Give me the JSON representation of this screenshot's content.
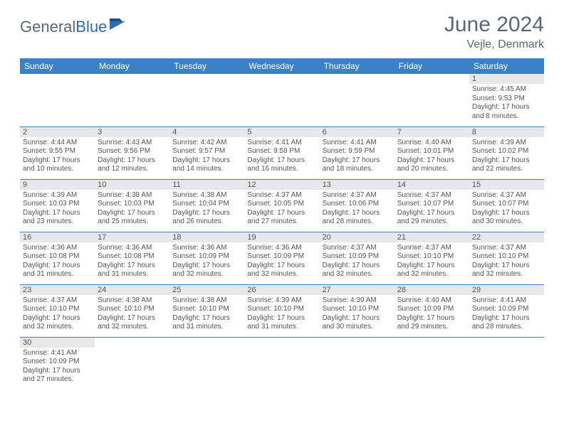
{
  "logo": {
    "text1": "General",
    "text2": "Blue"
  },
  "title": "June 2024",
  "location": "Vejle, Denmark",
  "colors": {
    "header_bg": "#3b82c4",
    "header_text": "#ffffff",
    "daynum_bg": "#e8e8e8",
    "border": "#3b82c4",
    "text": "#555555",
    "title_text": "#5c6670"
  },
  "weekdays": [
    "Sunday",
    "Monday",
    "Tuesday",
    "Wednesday",
    "Thursday",
    "Friday",
    "Saturday"
  ],
  "weeks": [
    [
      {
        "n": "",
        "sr": "",
        "ss": "",
        "dl": ""
      },
      {
        "n": "",
        "sr": "",
        "ss": "",
        "dl": ""
      },
      {
        "n": "",
        "sr": "",
        "ss": "",
        "dl": ""
      },
      {
        "n": "",
        "sr": "",
        "ss": "",
        "dl": ""
      },
      {
        "n": "",
        "sr": "",
        "ss": "",
        "dl": ""
      },
      {
        "n": "",
        "sr": "",
        "ss": "",
        "dl": ""
      },
      {
        "n": "1",
        "sr": "Sunrise: 4:45 AM",
        "ss": "Sunset: 9:53 PM",
        "dl": "Daylight: 17 hours and 8 minutes."
      }
    ],
    [
      {
        "n": "2",
        "sr": "Sunrise: 4:44 AM",
        "ss": "Sunset: 9:55 PM",
        "dl": "Daylight: 17 hours and 10 minutes."
      },
      {
        "n": "3",
        "sr": "Sunrise: 4:43 AM",
        "ss": "Sunset: 9:56 PM",
        "dl": "Daylight: 17 hours and 12 minutes."
      },
      {
        "n": "4",
        "sr": "Sunrise: 4:42 AM",
        "ss": "Sunset: 9:57 PM",
        "dl": "Daylight: 17 hours and 14 minutes."
      },
      {
        "n": "5",
        "sr": "Sunrise: 4:41 AM",
        "ss": "Sunset: 9:58 PM",
        "dl": "Daylight: 17 hours and 16 minutes."
      },
      {
        "n": "6",
        "sr": "Sunrise: 4:41 AM",
        "ss": "Sunset: 9:59 PM",
        "dl": "Daylight: 17 hours and 18 minutes."
      },
      {
        "n": "7",
        "sr": "Sunrise: 4:40 AM",
        "ss": "Sunset: 10:01 PM",
        "dl": "Daylight: 17 hours and 20 minutes."
      },
      {
        "n": "8",
        "sr": "Sunrise: 4:39 AM",
        "ss": "Sunset: 10:02 PM",
        "dl": "Daylight: 17 hours and 22 minutes."
      }
    ],
    [
      {
        "n": "9",
        "sr": "Sunrise: 4:39 AM",
        "ss": "Sunset: 10:03 PM",
        "dl": "Daylight: 17 hours and 23 minutes."
      },
      {
        "n": "10",
        "sr": "Sunrise: 4:38 AM",
        "ss": "Sunset: 10:03 PM",
        "dl": "Daylight: 17 hours and 25 minutes."
      },
      {
        "n": "11",
        "sr": "Sunrise: 4:38 AM",
        "ss": "Sunset: 10:04 PM",
        "dl": "Daylight: 17 hours and 26 minutes."
      },
      {
        "n": "12",
        "sr": "Sunrise: 4:37 AM",
        "ss": "Sunset: 10:05 PM",
        "dl": "Daylight: 17 hours and 27 minutes."
      },
      {
        "n": "13",
        "sr": "Sunrise: 4:37 AM",
        "ss": "Sunset: 10:06 PM",
        "dl": "Daylight: 17 hours and 28 minutes."
      },
      {
        "n": "14",
        "sr": "Sunrise: 4:37 AM",
        "ss": "Sunset: 10:07 PM",
        "dl": "Daylight: 17 hours and 29 minutes."
      },
      {
        "n": "15",
        "sr": "Sunrise: 4:37 AM",
        "ss": "Sunset: 10:07 PM",
        "dl": "Daylight: 17 hours and 30 minutes."
      }
    ],
    [
      {
        "n": "16",
        "sr": "Sunrise: 4:36 AM",
        "ss": "Sunset: 10:08 PM",
        "dl": "Daylight: 17 hours and 31 minutes."
      },
      {
        "n": "17",
        "sr": "Sunrise: 4:36 AM",
        "ss": "Sunset: 10:08 PM",
        "dl": "Daylight: 17 hours and 31 minutes."
      },
      {
        "n": "18",
        "sr": "Sunrise: 4:36 AM",
        "ss": "Sunset: 10:09 PM",
        "dl": "Daylight: 17 hours and 32 minutes."
      },
      {
        "n": "19",
        "sr": "Sunrise: 4:36 AM",
        "ss": "Sunset: 10:09 PM",
        "dl": "Daylight: 17 hours and 32 minutes."
      },
      {
        "n": "20",
        "sr": "Sunrise: 4:37 AM",
        "ss": "Sunset: 10:09 PM",
        "dl": "Daylight: 17 hours and 32 minutes."
      },
      {
        "n": "21",
        "sr": "Sunrise: 4:37 AM",
        "ss": "Sunset: 10:10 PM",
        "dl": "Daylight: 17 hours and 32 minutes."
      },
      {
        "n": "22",
        "sr": "Sunrise: 4:37 AM",
        "ss": "Sunset: 10:10 PM",
        "dl": "Daylight: 17 hours and 32 minutes."
      }
    ],
    [
      {
        "n": "23",
        "sr": "Sunrise: 4:37 AM",
        "ss": "Sunset: 10:10 PM",
        "dl": "Daylight: 17 hours and 32 minutes."
      },
      {
        "n": "24",
        "sr": "Sunrise: 4:38 AM",
        "ss": "Sunset: 10:10 PM",
        "dl": "Daylight: 17 hours and 32 minutes."
      },
      {
        "n": "25",
        "sr": "Sunrise: 4:38 AM",
        "ss": "Sunset: 10:10 PM",
        "dl": "Daylight: 17 hours and 31 minutes."
      },
      {
        "n": "26",
        "sr": "Sunrise: 4:39 AM",
        "ss": "Sunset: 10:10 PM",
        "dl": "Daylight: 17 hours and 31 minutes."
      },
      {
        "n": "27",
        "sr": "Sunrise: 4:39 AM",
        "ss": "Sunset: 10:10 PM",
        "dl": "Daylight: 17 hours and 30 minutes."
      },
      {
        "n": "28",
        "sr": "Sunrise: 4:40 AM",
        "ss": "Sunset: 10:09 PM",
        "dl": "Daylight: 17 hours and 29 minutes."
      },
      {
        "n": "29",
        "sr": "Sunrise: 4:41 AM",
        "ss": "Sunset: 10:09 PM",
        "dl": "Daylight: 17 hours and 28 minutes."
      }
    ],
    [
      {
        "n": "30",
        "sr": "Sunrise: 4:41 AM",
        "ss": "Sunset: 10:09 PM",
        "dl": "Daylight: 17 hours and 27 minutes."
      },
      {
        "n": "",
        "sr": "",
        "ss": "",
        "dl": ""
      },
      {
        "n": "",
        "sr": "",
        "ss": "",
        "dl": ""
      },
      {
        "n": "",
        "sr": "",
        "ss": "",
        "dl": ""
      },
      {
        "n": "",
        "sr": "",
        "ss": "",
        "dl": ""
      },
      {
        "n": "",
        "sr": "",
        "ss": "",
        "dl": ""
      },
      {
        "n": "",
        "sr": "",
        "ss": "",
        "dl": ""
      }
    ]
  ]
}
